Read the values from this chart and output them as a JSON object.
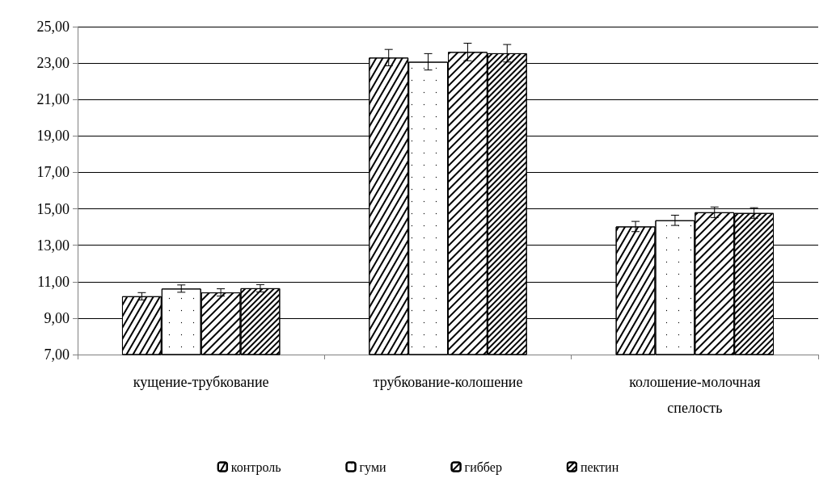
{
  "chart_data": {
    "type": "bar",
    "categories": [
      "кущение-трубкование",
      "трубкование-колошение",
      "колошение-молочная спелость"
    ],
    "series": [
      {
        "name": "контроль",
        "color": "#000000",
        "values": [
          10.2,
          23.3,
          14.03
        ],
        "errors": [
          0.2,
          0.45,
          0.28
        ]
      },
      {
        "name": "гуми",
        "color": "#000000",
        "values": [
          10.62,
          23.07,
          14.37
        ],
        "errors": [
          0.2,
          0.45,
          0.28
        ]
      },
      {
        "name": "гиббер",
        "color": "#000000",
        "values": [
          10.41,
          23.61,
          14.81
        ],
        "errors": [
          0.2,
          0.48,
          0.29
        ]
      },
      {
        "name": "пектин",
        "color": "#000000",
        "values": [
          10.64,
          23.54,
          14.77
        ],
        "errors": [
          0.2,
          0.48,
          0.29
        ]
      }
    ],
    "ylim": [
      7,
      25
    ],
    "yticks": [
      {
        "value": 7,
        "label": "7,00"
      },
      {
        "value": 9,
        "label": "9,00"
      },
      {
        "value": 11,
        "label": "11,00"
      },
      {
        "value": 13,
        "label": "13,00"
      },
      {
        "value": 15,
        "label": "15,00"
      },
      {
        "value": 17,
        "label": "17,00"
      },
      {
        "value": 19,
        "label": "19,00"
      },
      {
        "value": 21,
        "label": "21,00"
      },
      {
        "value": 23,
        "label": "23,00"
      },
      {
        "value": 25,
        "label": "25,00"
      }
    ],
    "grid": "y",
    "legend": "bottom"
  }
}
